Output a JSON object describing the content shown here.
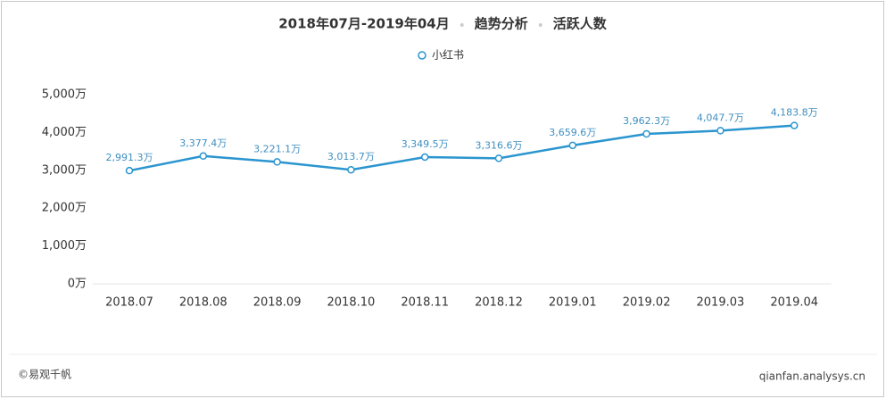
{
  "chart_data": {
    "type": "line",
    "title": [
      "2018年07月-2019年04月",
      "趋势分析",
      "活跃人数"
    ],
    "categories": [
      "2018.07",
      "2018.08",
      "2018.09",
      "2018.10",
      "2018.11",
      "2018.12",
      "2019.01",
      "2019.02",
      "2019.03",
      "2019.04"
    ],
    "series": [
      {
        "name": "小红书",
        "color": "#2b95cf",
        "values": [
          2991.3,
          3377.4,
          3221.1,
          3013.7,
          3349.5,
          3316.6,
          3659.6,
          3962.3,
          4047.7,
          4183.8
        ],
        "value_labels": [
          "2,991.3万",
          "3,377.4万",
          "3,221.1万",
          "3,013.7万",
          "3,349.5万",
          "3,316.6万",
          "3,659.6万",
          "3,962.3万",
          "4,047.7万",
          "4,183.8万"
        ]
      }
    ],
    "ylim": [
      0,
      5000
    ],
    "yticks": [
      {
        "value": 0,
        "label": "0万"
      },
      {
        "value": 1000,
        "label": "1,000万"
      },
      {
        "value": 2000,
        "label": "2,000万"
      },
      {
        "value": 3000,
        "label": "3,000万"
      },
      {
        "value": 4000,
        "label": "4,000万"
      },
      {
        "value": 5000,
        "label": "5,000万"
      }
    ],
    "grid": false,
    "legend": "top",
    "footer_left": "©易观千帆",
    "footer_right": "qianfan.analysys.cn"
  }
}
